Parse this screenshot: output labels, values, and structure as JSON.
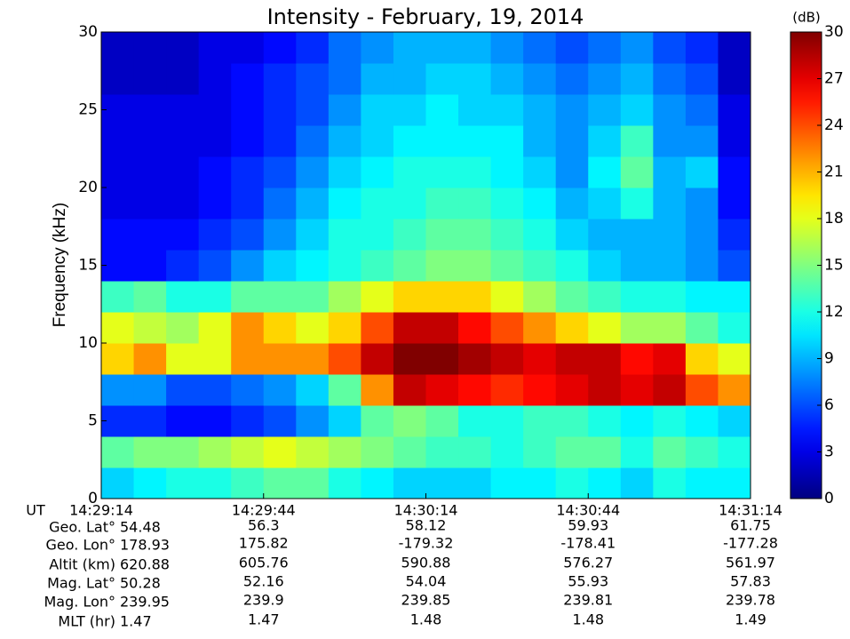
{
  "chart_data": {
    "type": "heatmap",
    "title": "Intensity - February, 19, 2014",
    "ylabel": "Frequency (kHz)",
    "colormap": "jet",
    "xlim": [
      "14:29:14",
      "14:31:14"
    ],
    "xticks": [
      "14:29:14",
      "14:29:44",
      "14:30:14",
      "14:30:44",
      "14:31:14"
    ],
    "ylim": [
      0,
      30
    ],
    "yticks": [
      0,
      5,
      10,
      15,
      20,
      25,
      30
    ],
    "x": [
      "14:29:14",
      "14:29:20",
      "14:29:26",
      "14:29:32",
      "14:29:38",
      "14:29:44",
      "14:29:50",
      "14:29:56",
      "14:30:02",
      "14:30:08",
      "14:30:14",
      "14:30:20",
      "14:30:26",
      "14:30:32",
      "14:30:38",
      "14:30:44",
      "14:30:50",
      "14:30:56",
      "14:31:02",
      "14:31:08",
      "14:31:14"
    ],
    "y": [
      0,
      2,
      4,
      6,
      8,
      10,
      12,
      14,
      16,
      18,
      20,
      22,
      24,
      26,
      28,
      30
    ],
    "z": [
      [
        10,
        11,
        12,
        12,
        13,
        14,
        14,
        12,
        11,
        10,
        10,
        10,
        11,
        11,
        12,
        11,
        10,
        12,
        11,
        11
      ],
      [
        14,
        15,
        15,
        16,
        17,
        18,
        17,
        16,
        15,
        14,
        13,
        13,
        12,
        13,
        14,
        14,
        12,
        14,
        13,
        12
      ],
      [
        5,
        5,
        4,
        4,
        5,
        6,
        8,
        10,
        14,
        15,
        14,
        12,
        12,
        13,
        13,
        12,
        11,
        12,
        11,
        10
      ],
      [
        8,
        8,
        6,
        6,
        7,
        8,
        10,
        14,
        22,
        28,
        27,
        26,
        25,
        26,
        27,
        28,
        27,
        28,
        24,
        22
      ],
      [
        20,
        22,
        18,
        18,
        22,
        22,
        22,
        24,
        28,
        30,
        30,
        29,
        28,
        27,
        28,
        28,
        26,
        27,
        20,
        18
      ],
      [
        18,
        17,
        16,
        18,
        22,
        20,
        18,
        20,
        24,
        28,
        28,
        26,
        24,
        22,
        20,
        18,
        16,
        16,
        14,
        12
      ],
      [
        13,
        14,
        12,
        12,
        14,
        14,
        14,
        16,
        18,
        20,
        20,
        20,
        18,
        16,
        14,
        13,
        12,
        12,
        11,
        11
      ],
      [
        4,
        4,
        5,
        6,
        8,
        10,
        11,
        12,
        13,
        14,
        15,
        15,
        14,
        13,
        12,
        10,
        9,
        9,
        8,
        6
      ],
      [
        4,
        4,
        4,
        5,
        6,
        8,
        10,
        12,
        12,
        13,
        14,
        14,
        13,
        12,
        10,
        9,
        9,
        9,
        8,
        5
      ],
      [
        3,
        3,
        3,
        4,
        5,
        7,
        9,
        11,
        12,
        12,
        13,
        13,
        12,
        11,
        9,
        10,
        12,
        9,
        8,
        4
      ],
      [
        3,
        3,
        3,
        4,
        5,
        6,
        8,
        10,
        11,
        12,
        12,
        12,
        11,
        10,
        8,
        11,
        14,
        9,
        10,
        4
      ],
      [
        3,
        3,
        3,
        3,
        4,
        5,
        7,
        9,
        10,
        11,
        11,
        11,
        11,
        9,
        8,
        10,
        13,
        8,
        8,
        3
      ],
      [
        3,
        3,
        3,
        3,
        4,
        5,
        6,
        8,
        10,
        10,
        11,
        10,
        10,
        9,
        8,
        9,
        10,
        8,
        7,
        3
      ],
      [
        2,
        2,
        2,
        3,
        4,
        5,
        6,
        7,
        9,
        9,
        10,
        10,
        9,
        8,
        7,
        8,
        9,
        7,
        6,
        2
      ],
      [
        2,
        2,
        2,
        3,
        3,
        4,
        5,
        7,
        8,
        9,
        9,
        9,
        8,
        7,
        6,
        7,
        8,
        6,
        5,
        2
      ]
    ],
    "zlabel": "(dB)",
    "zlim": [
      0,
      30
    ],
    "zticks": [
      0,
      3,
      6,
      9,
      12,
      15,
      18,
      21,
      24,
      27,
      30
    ],
    "xlabel": "UT",
    "ephemeris": [
      {
        "label": "Geo. Lat°",
        "values": [
          54.48,
          56.3,
          58.12,
          59.93,
          61.75
        ]
      },
      {
        "label": "Geo. Lon°",
        "values": [
          178.93,
          175.82,
          -179.32,
          -178.41,
          -177.28
        ]
      },
      {
        "label": "Altit (km)",
        "values": [
          620.88,
          605.76,
          590.88,
          576.27,
          561.97
        ]
      },
      {
        "label": "Mag. Lat°",
        "values": [
          50.28,
          52.16,
          54.04,
          55.93,
          57.83
        ]
      },
      {
        "label": "Mag. Lon°",
        "values": [
          239.95,
          239.9,
          239.85,
          239.81,
          239.78
        ]
      },
      {
        "label": "MLT (hr)",
        "values": [
          1.47,
          1.47,
          1.48,
          1.48,
          1.49
        ]
      }
    ]
  }
}
